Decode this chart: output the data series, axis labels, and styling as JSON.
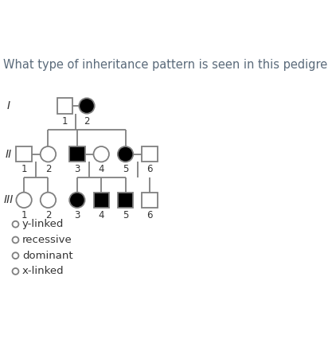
{
  "title": "What type of inheritance pattern is seen in this pedigree chart?",
  "title_color": "#5a6a7a",
  "title_fontsize": 10.5,
  "bg_color": "#ffffff",
  "line_color": "#808080",
  "fill_black": "#000000",
  "fill_white": "#ffffff",
  "choices": [
    "y-linked",
    "recessive",
    "dominant",
    "x-linked"
  ],
  "gen_labels": [
    "I",
    "II",
    "III"
  ],
  "sym_size": 0.32,
  "lw": 1.3,
  "I1x": 2.6,
  "I2x": 3.5,
  "Iy": 7.8,
  "II1x": 0.9,
  "II2x": 1.9,
  "II3x": 3.1,
  "II4x": 4.1,
  "II5x": 5.1,
  "II6x": 6.1,
  "IIy": 5.8,
  "III1x": 0.9,
  "III2x": 1.9,
  "III3x": 3.1,
  "III4x": 4.1,
  "III5x": 5.1,
  "III6x": 6.1,
  "IIIy": 3.9
}
